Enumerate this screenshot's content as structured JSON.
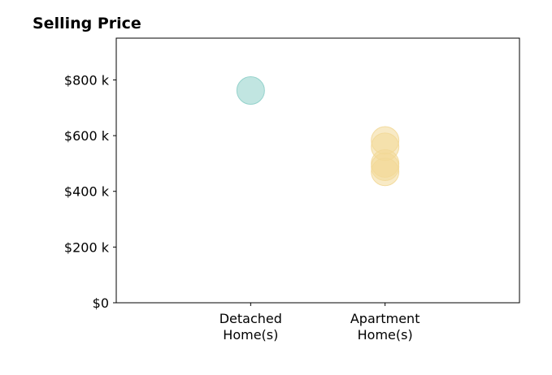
{
  "chart_data": {
    "type": "scatter",
    "title": "Selling Price",
    "xlabel": "",
    "ylabel": "",
    "categories": [
      [
        "Detached",
        "Home(s)"
      ],
      [
        "Apartment",
        "Home(s)"
      ]
    ],
    "y_ticks": [
      {
        "value": 0,
        "label": "$0"
      },
      {
        "value": 200000,
        "label": "$200 k"
      },
      {
        "value": 400000,
        "label": "$400 k"
      },
      {
        "value": 600000,
        "label": "$600 k"
      },
      {
        "value": 800000,
        "label": "$800 k"
      }
    ],
    "ylim": [
      0,
      950000
    ],
    "xlim": [
      -1,
      2
    ],
    "grid": false,
    "series": [
      {
        "category_index": 0,
        "color": "#8ecfc9",
        "values": [
          762000
        ]
      },
      {
        "category_index": 1,
        "color": "#f2d898",
        "values": [
          583000,
          560000,
          500000,
          488000,
          470000
        ]
      }
    ]
  }
}
